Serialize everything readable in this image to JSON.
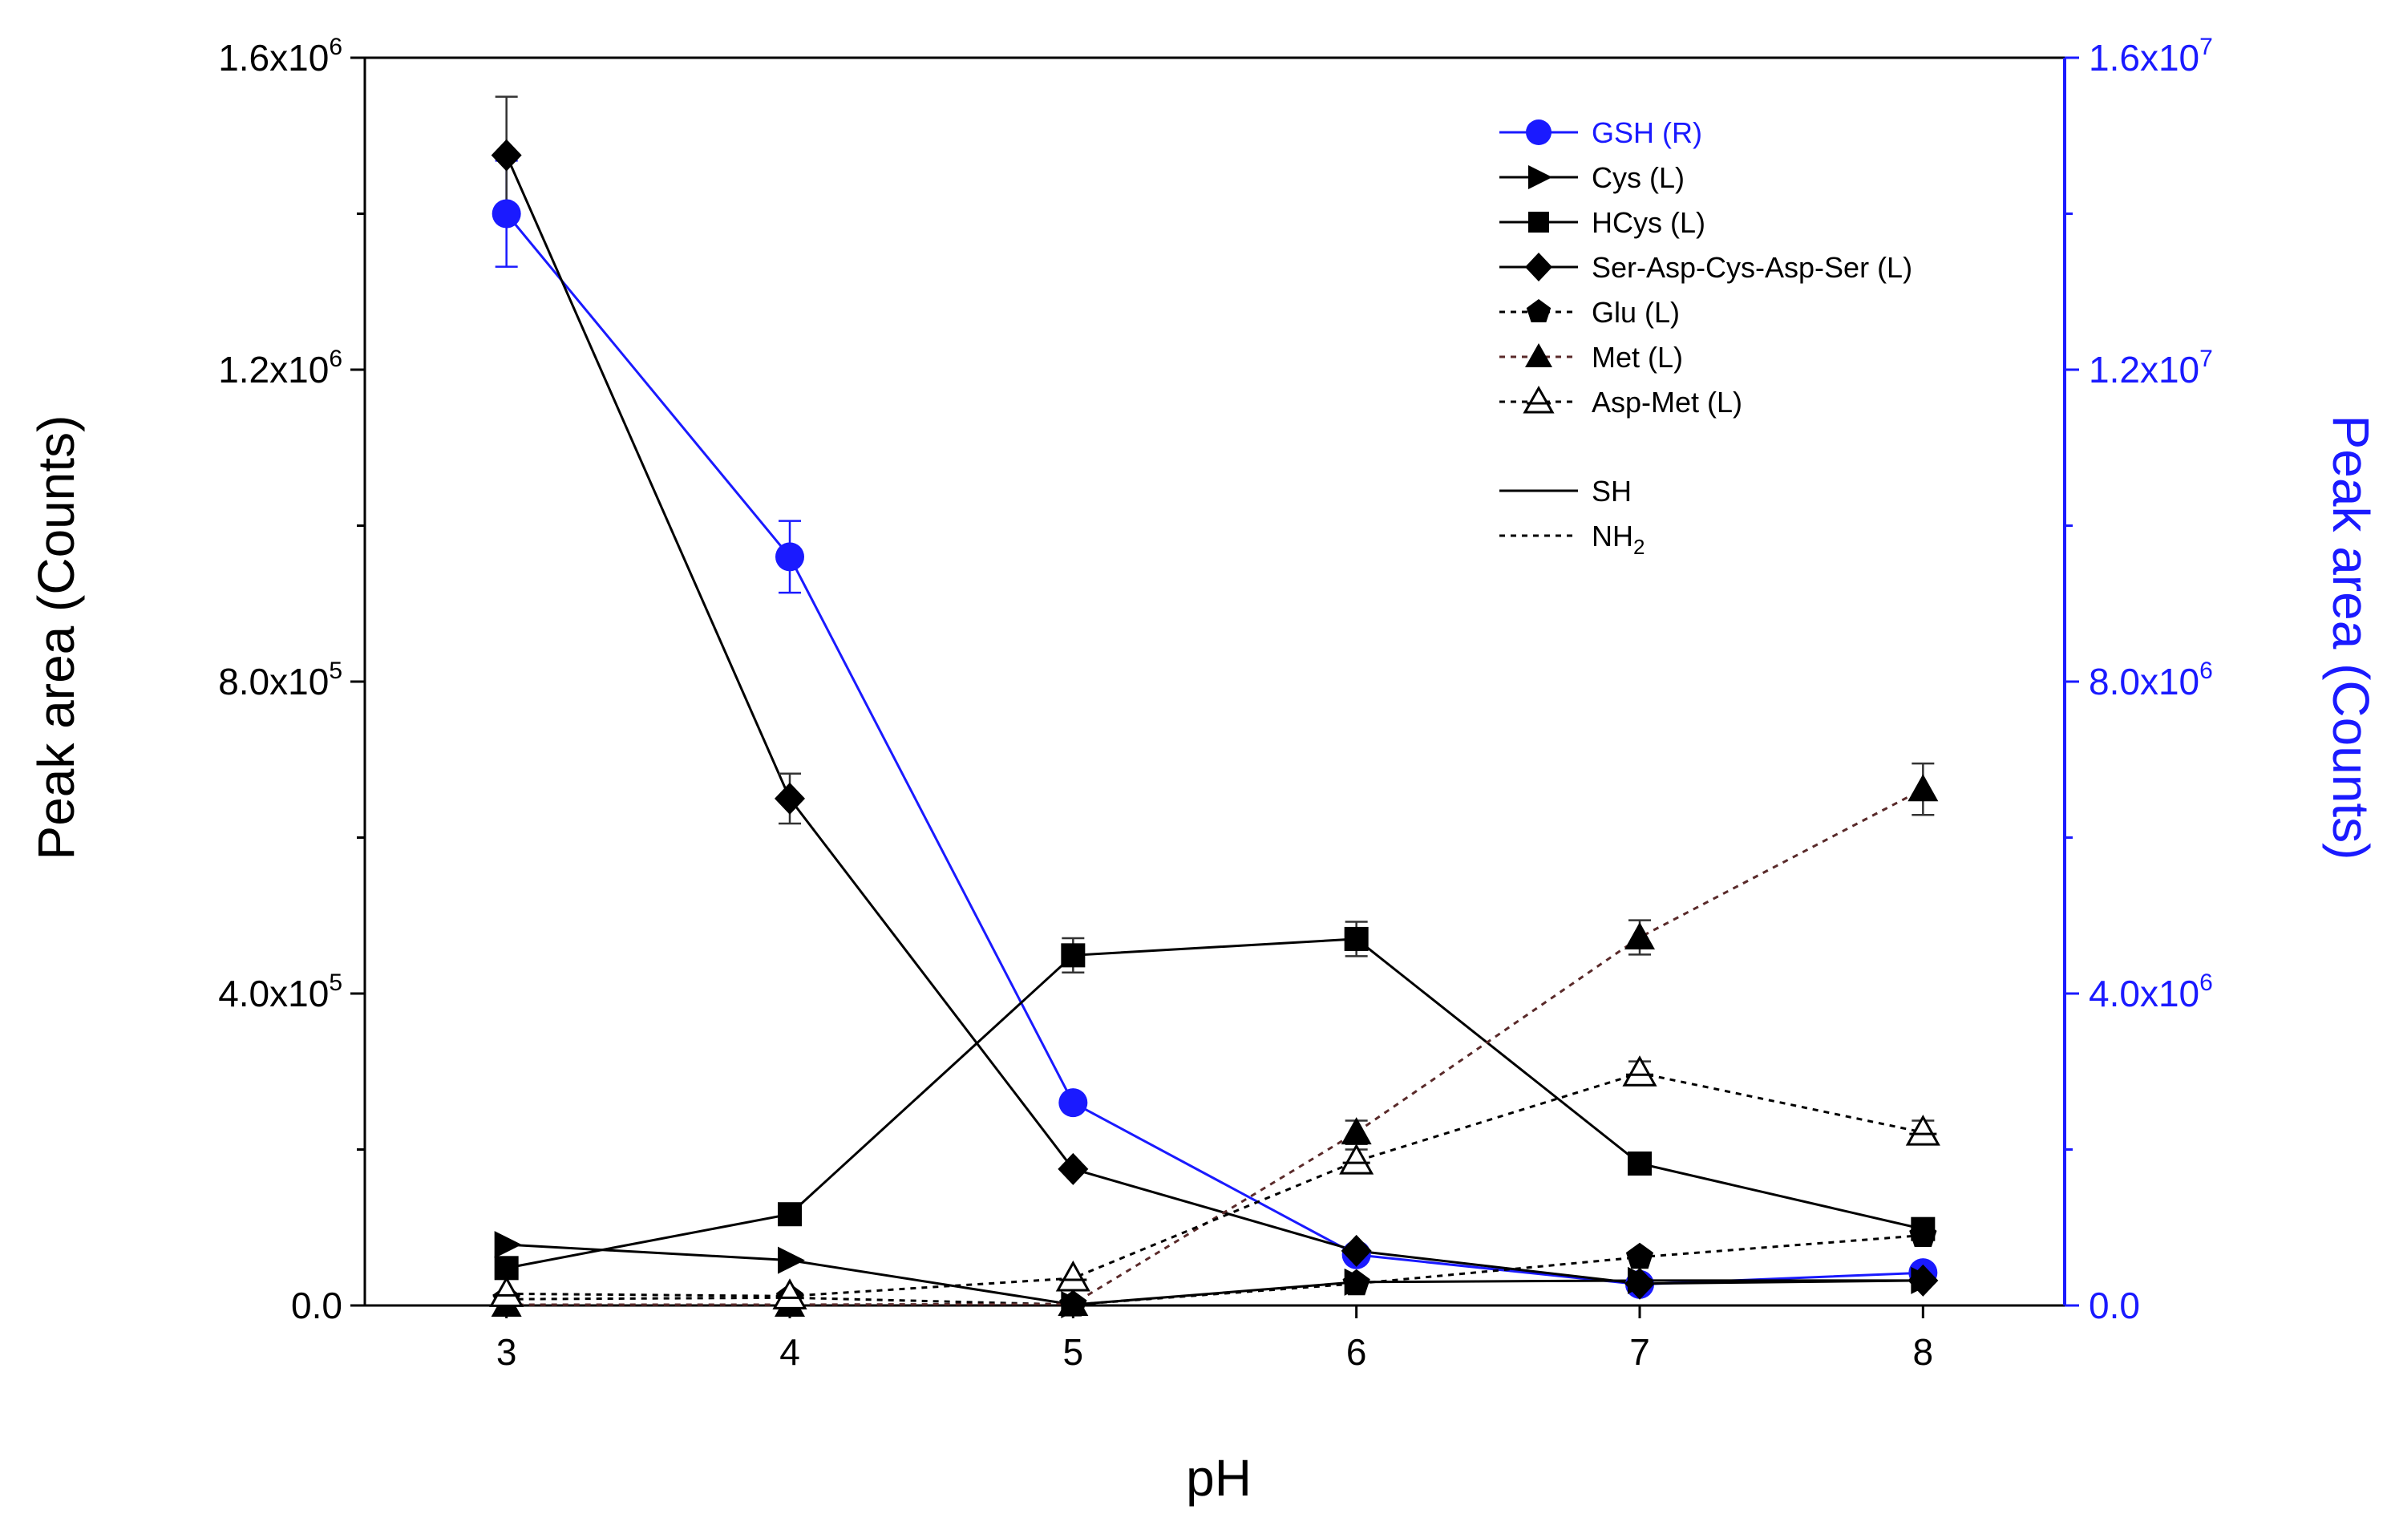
{
  "colors": {
    "left_axis": "#000000",
    "right_axis": "#1a1aff",
    "gsh_series": "#1a1aff",
    "nh2_met_line": "#5a2a2a",
    "background": "#ffffff"
  },
  "chart_data": {
    "type": "line",
    "xlabel": "pH",
    "ylabel_left": "Peak area (Counts)",
    "ylabel_right": "Peak area (Counts)",
    "x": [
      3,
      4,
      5,
      6,
      7,
      8
    ],
    "xlim": [
      2.5,
      8.5
    ],
    "ylim_left": [
      0,
      1600000
    ],
    "ylim_right": [
      0,
      16000000
    ],
    "x_ticks": [
      "3",
      "4",
      "5",
      "6",
      "7",
      "8"
    ],
    "y_ticks_left": [
      {
        "value": 0,
        "mantissa": "0.0",
        "exponent": ""
      },
      {
        "value": 400000,
        "mantissa": "4.0x10",
        "exponent": "5"
      },
      {
        "value": 800000,
        "mantissa": "8.0x10",
        "exponent": "5"
      },
      {
        "value": 1200000,
        "mantissa": "1.2x10",
        "exponent": "6"
      },
      {
        "value": 1600000,
        "mantissa": "1.6x10",
        "exponent": "6"
      }
    ],
    "y_ticks_right": [
      {
        "value": 0,
        "mantissa": "0.0",
        "exponent": ""
      },
      {
        "value": 4000000,
        "mantissa": "4.0x10",
        "exponent": "6"
      },
      {
        "value": 8000000,
        "mantissa": "8.0x10",
        "exponent": "6"
      },
      {
        "value": 12000000,
        "mantissa": "1.2x10",
        "exponent": "7"
      },
      {
        "value": 16000000,
        "mantissa": "1.6x10",
        "exponent": "7"
      }
    ],
    "series": [
      {
        "name": "GSH (R)",
        "axis": "right",
        "marker": "circle",
        "line": "solid",
        "color": "#1a1aff",
        "values": [
          14000000,
          9600000,
          2600000,
          650000,
          270000,
          420000
        ],
        "errors": [
          680000,
          460000,
          0,
          0,
          0,
          0
        ]
      },
      {
        "name": "Cys (L)",
        "axis": "left",
        "marker": "triangle-right",
        "line": "solid",
        "color": "#000000",
        "values": [
          78000,
          58000,
          1000,
          30000,
          32000,
          32000
        ],
        "errors": [
          0,
          0,
          0,
          0,
          0,
          0
        ]
      },
      {
        "name": "HCys (L)",
        "axis": "left",
        "marker": "square",
        "line": "solid",
        "color": "#000000",
        "values": [
          48000,
          117000,
          449000,
          470000,
          182000,
          98000
        ],
        "errors": [
          0,
          0,
          22000,
          22000,
          0,
          9000
        ]
      },
      {
        "name": "Ser-Asp-Cys-Asp-Ser (L)",
        "axis": "left",
        "marker": "diamond",
        "line": "solid",
        "color": "#000000",
        "values": [
          1475000,
          650000,
          175000,
          70000,
          28000,
          32000
        ],
        "errors": [
          75000,
          32000,
          0,
          0,
          0,
          0
        ]
      },
      {
        "name": "Glu (L)",
        "axis": "left",
        "marker": "pentagon",
        "line": "dotted",
        "color": "#000000",
        "values": [
          8000,
          10000,
          1000,
          28000,
          62000,
          90000
        ],
        "errors": [
          0,
          0,
          0,
          0,
          0,
          0
        ]
      },
      {
        "name": "Met (L)",
        "axis": "left",
        "marker": "triangle-up",
        "line": "dotted",
        "color": "#5a2a2a",
        "values": [
          1000,
          1000,
          2000,
          222000,
          472000,
          662000
        ],
        "errors": [
          0,
          0,
          0,
          15000,
          22000,
          33000
        ]
      },
      {
        "name": "Asp-Met (L)",
        "axis": "left",
        "marker": "triangle-up-open",
        "line": "dotted",
        "color": "#000000",
        "values": [
          15000,
          12000,
          35000,
          185000,
          298000,
          222000
        ],
        "errors": [
          0,
          0,
          0,
          15000,
          15000,
          15000
        ]
      }
    ],
    "legend": {
      "position": "top-right",
      "entries": [
        "GSH (R)",
        "Cys (L)",
        "HCys (L)",
        "Ser-Asp-Cys-Asp-Ser (L)",
        "Glu (L)",
        "Met (L)",
        "Asp-Met (L)"
      ],
      "line_style_entries": [
        {
          "label": "SH",
          "subscript": "",
          "line": "solid"
        },
        {
          "label": "NH",
          "subscript": "2",
          "line": "dotted"
        }
      ]
    }
  }
}
